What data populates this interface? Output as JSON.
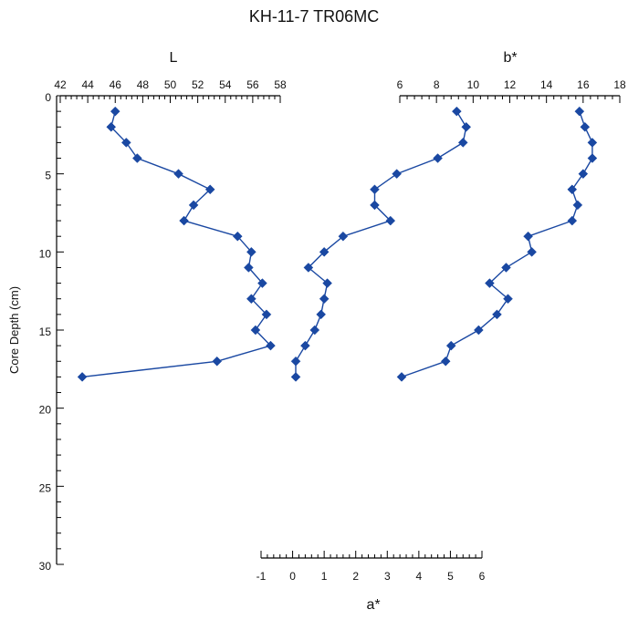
{
  "title": "KH-11-7 TR06MC",
  "chart_data": {
    "type": "scatter",
    "title": "KH-11-7 TR06MC",
    "ylabel": "Core Depth (cm)",
    "y": {
      "range": [
        0,
        30
      ],
      "ticks": [
        0,
        5,
        10,
        15,
        20,
        25,
        30
      ],
      "inverted": true
    },
    "grid": false,
    "legend": "none",
    "panels": [
      {
        "name": "L",
        "xlabel": "L",
        "axis_position": "top",
        "range": [
          42,
          58
        ],
        "ticks": [
          42,
          44,
          46,
          48,
          50,
          52,
          54,
          56,
          58
        ],
        "color": "#1a48a2",
        "points": [
          {
            "x": 46.0,
            "y": 1
          },
          {
            "x": 45.7,
            "y": 2
          },
          {
            "x": 46.8,
            "y": 3
          },
          {
            "x": 47.6,
            "y": 4
          },
          {
            "x": 50.6,
            "y": 5
          },
          {
            "x": 52.9,
            "y": 6
          },
          {
            "x": 51.7,
            "y": 7
          },
          {
            "x": 51.0,
            "y": 8
          },
          {
            "x": 54.9,
            "y": 9
          },
          {
            "x": 55.9,
            "y": 10
          },
          {
            "x": 55.7,
            "y": 11
          },
          {
            "x": 56.7,
            "y": 12
          },
          {
            "x": 55.9,
            "y": 13
          },
          {
            "x": 57.0,
            "y": 14
          },
          {
            "x": 56.2,
            "y": 15
          },
          {
            "x": 57.3,
            "y": 16
          },
          {
            "x": 53.4,
            "y": 17
          },
          {
            "x": 43.6,
            "y": 18
          }
        ]
      },
      {
        "name": "a*",
        "xlabel": "a*",
        "axis_position": "bottom",
        "range": [
          -1,
          6
        ],
        "ticks": [
          -1,
          0,
          1,
          2,
          3,
          4,
          5,
          6
        ],
        "color": "#1a48a2",
        "points": [
          {
            "x": 5.2,
            "y": 1
          },
          {
            "x": 5.5,
            "y": 2
          },
          {
            "x": 5.4,
            "y": 3
          },
          {
            "x": 4.6,
            "y": 4
          },
          {
            "x": 3.3,
            "y": 5
          },
          {
            "x": 2.6,
            "y": 6
          },
          {
            "x": 2.6,
            "y": 7
          },
          {
            "x": 3.1,
            "y": 8
          },
          {
            "x": 1.6,
            "y": 9
          },
          {
            "x": 1.0,
            "y": 10
          },
          {
            "x": 0.5,
            "y": 11
          },
          {
            "x": 1.1,
            "y": 12
          },
          {
            "x": 1.0,
            "y": 13
          },
          {
            "x": 0.9,
            "y": 14
          },
          {
            "x": 0.7,
            "y": 15
          },
          {
            "x": 0.4,
            "y": 16
          },
          {
            "x": 0.1,
            "y": 17
          },
          {
            "x": 0.1,
            "y": 18
          }
        ]
      },
      {
        "name": "b*",
        "xlabel": "b*",
        "axis_position": "top",
        "range": [
          6,
          18
        ],
        "ticks": [
          6,
          8,
          10,
          12,
          14,
          16,
          18
        ],
        "color": "#1a48a2",
        "points": [
          {
            "x": 15.8,
            "y": 1
          },
          {
            "x": 16.1,
            "y": 2
          },
          {
            "x": 16.5,
            "y": 3
          },
          {
            "x": 16.5,
            "y": 4
          },
          {
            "x": 16.0,
            "y": 5
          },
          {
            "x": 15.4,
            "y": 6
          },
          {
            "x": 15.7,
            "y": 7
          },
          {
            "x": 15.4,
            "y": 8
          },
          {
            "x": 13.0,
            "y": 9
          },
          {
            "x": 13.2,
            "y": 10
          },
          {
            "x": 11.8,
            "y": 11
          },
          {
            "x": 10.9,
            "y": 12
          },
          {
            "x": 11.9,
            "y": 13
          },
          {
            "x": 11.3,
            "y": 14
          },
          {
            "x": 10.3,
            "y": 15
          },
          {
            "x": 8.8,
            "y": 16
          },
          {
            "x": 8.5,
            "y": 17
          },
          {
            "x": 6.1,
            "y": 18
          }
        ]
      }
    ]
  }
}
